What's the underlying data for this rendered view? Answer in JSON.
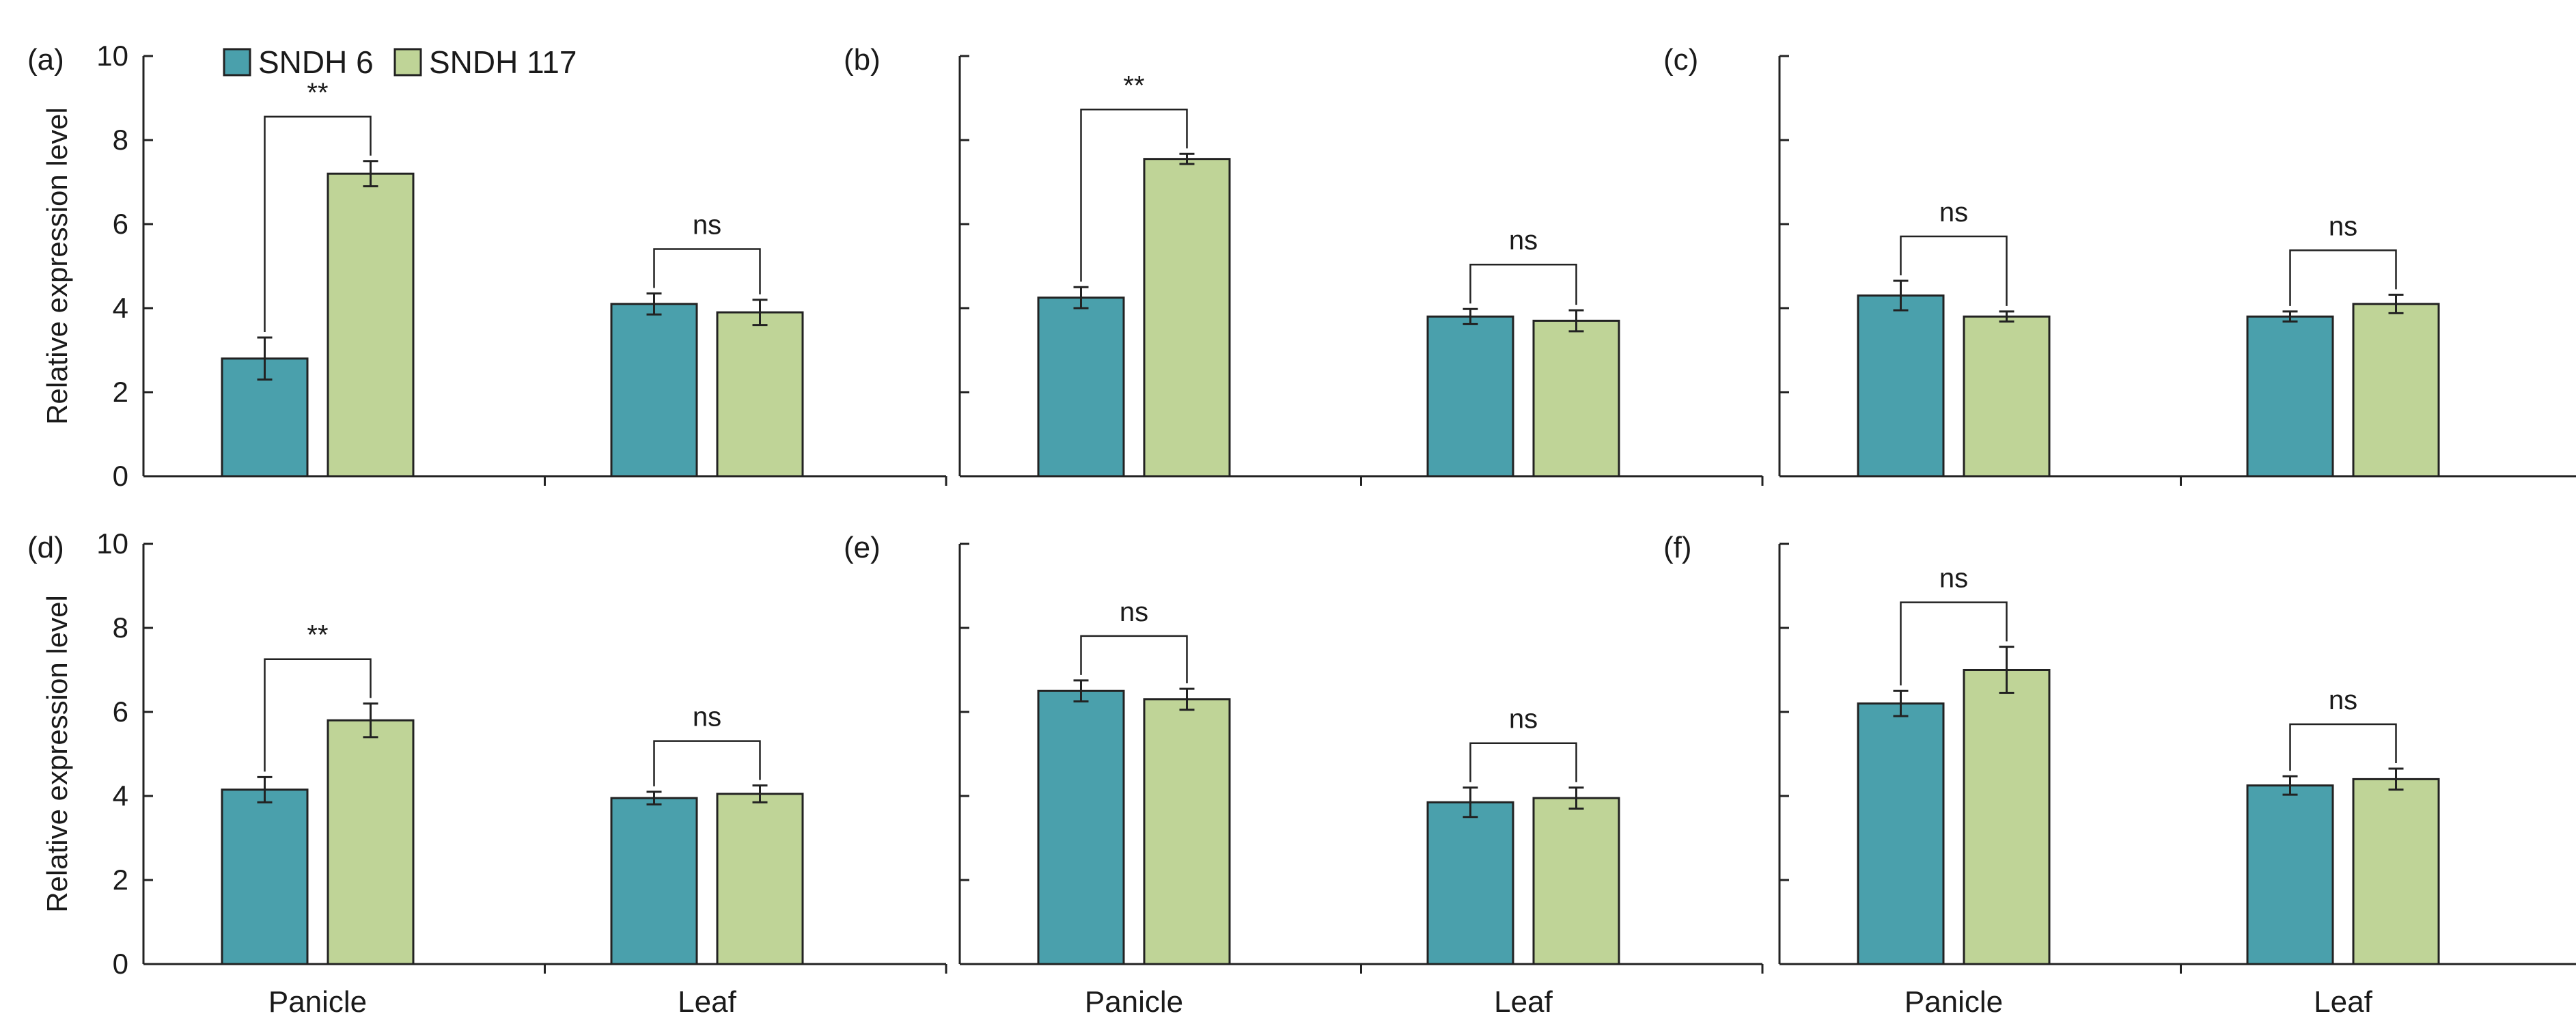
{
  "chart_data": {
    "type": "bar",
    "categories": [
      "Panicle",
      "Leaf"
    ],
    "ylabel": "Relative expression level",
    "ylim": [
      0,
      10
    ],
    "yticks": [
      0,
      2,
      4,
      6,
      8,
      10
    ],
    "colors": {
      "SNDH 6": "#4aa0ac",
      "SNDH 117": "#bfd497"
    },
    "legend": [
      "SNDH 6",
      "SNDH 117"
    ],
    "panels": [
      {
        "label": "(a)",
        "series": [
          {
            "name": "SNDH 6",
            "values": [
              2.8,
              4.1
            ],
            "errors": [
              0.5,
              0.25
            ]
          },
          {
            "name": "SNDH 117",
            "values": [
              7.2,
              3.9
            ],
            "errors": [
              0.3,
              0.3
            ]
          }
        ],
        "significance": [
          "**",
          "ns"
        ]
      },
      {
        "label": "(b)",
        "series": [
          {
            "name": "SNDH 6",
            "values": [
              4.25,
              3.8
            ],
            "errors": [
              0.25,
              0.18
            ]
          },
          {
            "name": "SNDH 117",
            "values": [
              7.55,
              3.7
            ],
            "errors": [
              0.12,
              0.25
            ]
          }
        ],
        "significance": [
          "**",
          "ns"
        ]
      },
      {
        "label": "(c)",
        "series": [
          {
            "name": "SNDH 6",
            "values": [
              4.3,
              3.8
            ],
            "errors": [
              0.35,
              0.12
            ]
          },
          {
            "name": "SNDH 117",
            "values": [
              3.8,
              4.1
            ],
            "errors": [
              0.12,
              0.22
            ]
          }
        ],
        "significance": [
          "ns",
          "ns"
        ]
      },
      {
        "label": "(d)",
        "series": [
          {
            "name": "SNDH 6",
            "values": [
              4.15,
              3.95
            ],
            "errors": [
              0.3,
              0.15
            ]
          },
          {
            "name": "SNDH 117",
            "values": [
              5.8,
              4.05
            ],
            "errors": [
              0.4,
              0.2
            ]
          }
        ],
        "significance": [
          "**",
          "ns"
        ]
      },
      {
        "label": "(e)",
        "series": [
          {
            "name": "SNDH 6",
            "values": [
              6.5,
              3.85
            ],
            "errors": [
              0.25,
              0.35
            ]
          },
          {
            "name": "SNDH 117",
            "values": [
              6.3,
              3.95
            ],
            "errors": [
              0.25,
              0.25
            ]
          }
        ],
        "significance": [
          "ns",
          "ns"
        ]
      },
      {
        "label": "(f)",
        "series": [
          {
            "name": "SNDH 6",
            "values": [
              6.2,
              4.25
            ],
            "errors": [
              0.3,
              0.22
            ]
          },
          {
            "name": "SNDH 117",
            "values": [
              7.0,
              4.4
            ],
            "errors": [
              0.55,
              0.25
            ]
          }
        ],
        "significance": [
          "ns",
          "ns"
        ]
      }
    ]
  }
}
